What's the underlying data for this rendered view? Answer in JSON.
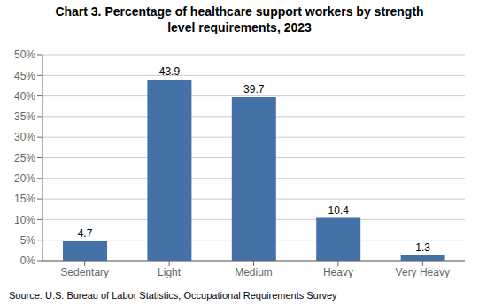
{
  "chart_data": {
    "type": "bar",
    "title": "Chart 3. Percentage of healthcare support workers by strength\nlevel requirements, 2023",
    "categories": [
      "Sedentary",
      "Light",
      "Medium",
      "Heavy",
      "Very Heavy"
    ],
    "values": [
      4.7,
      43.9,
      39.7,
      10.4,
      1.3
    ],
    "color": "#4472a8",
    "ylim": [
      0,
      50
    ],
    "yticks": [
      {
        "value": 0,
        "label": "0%"
      },
      {
        "value": 5,
        "label": "5%"
      },
      {
        "value": 10,
        "label": "10%"
      },
      {
        "value": 15,
        "label": "15%"
      },
      {
        "value": 20,
        "label": "20%"
      },
      {
        "value": 25,
        "label": "25%"
      },
      {
        "value": 30,
        "label": "30%"
      },
      {
        "value": 35,
        "label": "35%"
      },
      {
        "value": 40,
        "label": "40%"
      },
      {
        "value": 45,
        "label": "45%"
      },
      {
        "value": 50,
        "label": "50%"
      }
    ],
    "grid": true,
    "data_labels": true,
    "annotations": [
      "Source: U.S. Bureau of Labor Statistics, Occupational Requirements Survey"
    ]
  }
}
